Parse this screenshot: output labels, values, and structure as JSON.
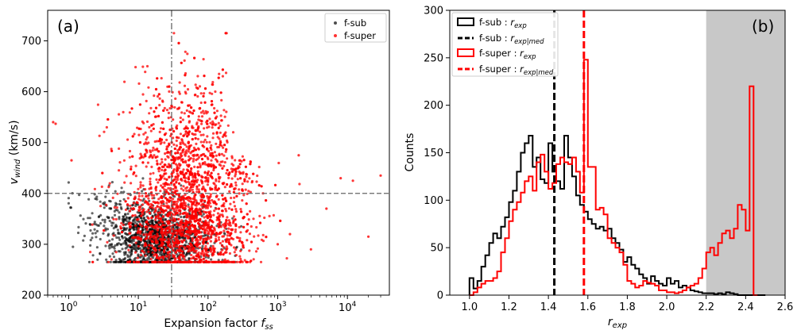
{
  "chart_data": [
    {
      "type": "scatter",
      "panel": "(a)",
      "xlabel": "Expansion factor f_ss",
      "ylabel": "v_wind (km/s)",
      "xscale": "log",
      "xlim": [
        0.5,
        40000
      ],
      "ylim": [
        200,
        760
      ],
      "xticks": [
        1,
        10,
        100,
        1000,
        10000
      ],
      "xtick_labels": [
        "10^0",
        "10^1",
        "10^2",
        "10^3",
        "10^4"
      ],
      "yticks": [
        200,
        300,
        400,
        500,
        600,
        700
      ],
      "reference_lines": {
        "vertical_x": 30,
        "horizontal_y": 400
      },
      "legend_position": "top-right",
      "series": [
        {
          "name": "f-sub",
          "color": "#000000",
          "count": 1400,
          "x_range": [
            1,
            300
          ],
          "y_range": [
            265,
            470
          ]
        },
        {
          "name": "f-super",
          "color": "#ff0000",
          "count": 2600,
          "x_range": [
            0.6,
            35000
          ],
          "y_range": [
            265,
            715
          ]
        }
      ]
    },
    {
      "type": "histogram",
      "panel": "(b)",
      "xlabel": "r_exp",
      "ylabel": "Counts",
      "xlim": [
        0.9,
        2.6
      ],
      "ylim": [
        0,
        300
      ],
      "xticks": [
        1.0,
        1.2,
        1.4,
        1.6,
        1.8,
        2.0,
        2.2,
        2.4,
        2.6
      ],
      "yticks": [
        0,
        50,
        100,
        150,
        200,
        250,
        300
      ],
      "shaded_region": [
        2.2,
        2.6
      ],
      "legend_position": "top-left",
      "bin_width": 0.02,
      "bin_start": 1.0,
      "series": [
        {
          "name": "f-sub : r_exp",
          "color": "#000000",
          "values": [
            18,
            7,
            15,
            30,
            42,
            55,
            65,
            60,
            72,
            82,
            98,
            110,
            130,
            150,
            160,
            168,
            135,
            145,
            122,
            118,
            160,
            130,
            120,
            112,
            168,
            145,
            125,
            105,
            95,
            88,
            80,
            75,
            70,
            72,
            68,
            70,
            60,
            55,
            48,
            35,
            40,
            32,
            28,
            22,
            18,
            12,
            20,
            15,
            12,
            10,
            18,
            12,
            15,
            8,
            10,
            8,
            5,
            4,
            3,
            2,
            2,
            2,
            1,
            2,
            1,
            3,
            2,
            1,
            0,
            0,
            0,
            0,
            0,
            0,
            0,
            0,
            0,
            0,
            0,
            0,
            0,
            0,
            0,
            0,
            0,
            0,
            0,
            0,
            0,
            0,
            0,
            0,
            0,
            0,
            0,
            0,
            0,
            0,
            0,
            0,
            0,
            0,
            0,
            0,
            0,
            0,
            0,
            0,
            0,
            0,
            0,
            0,
            0,
            0,
            0,
            0,
            0,
            0,
            0,
            0,
            0,
            0,
            0,
            0,
            0,
            0,
            0,
            0,
            0,
            0,
            0,
            0,
            0,
            0,
            0,
            0,
            0,
            0,
            0,
            0,
            0,
            0,
            0,
            0,
            0,
            0,
            0,
            0,
            0,
            0,
            0,
            0,
            0,
            0,
            0,
            0,
            0,
            0,
            0,
            0,
            0,
            0,
            0,
            0,
            0,
            0,
            0,
            0,
            0,
            0,
            0,
            0,
            0,
            0,
            0,
            0,
            0,
            0,
            0,
            0,
            0,
            0,
            0,
            0,
            0,
            0,
            0,
            0,
            0,
            0,
            0,
            0,
            0,
            0,
            0,
            0,
            0,
            0,
            0,
            0,
            0,
            0,
            0,
            0,
            0,
            0,
            0,
            0,
            0,
            0,
            0,
            0,
            0,
            0,
            0,
            0,
            0,
            0,
            0,
            0,
            0,
            0,
            0,
            0,
            0,
            0,
            0,
            0,
            0,
            0,
            0,
            0,
            0,
            0,
            0,
            0,
            0,
            0,
            0,
            0,
            0,
            0,
            0,
            0,
            0,
            0,
            0,
            0,
            0,
            0,
            0,
            0,
            0,
            0,
            0,
            0,
            0,
            0,
            0,
            0,
            0,
            0,
            0,
            0,
            0,
            0,
            0,
            0,
            0,
            0,
            0,
            0,
            0,
            0,
            0,
            0,
            0,
            0,
            0,
            0,
            0,
            0,
            0,
            0,
            0,
            0,
            0,
            0,
            0,
            0,
            0,
            0,
            0,
            0,
            0,
            0,
            0,
            0,
            0,
            0,
            0,
            0,
            0,
            0,
            0
          ]
        },
        {
          "name": "f-super : r_exp",
          "color": "#ff0000",
          "values": [
            0,
            3,
            8,
            12,
            15,
            15,
            18,
            25,
            45,
            60,
            78,
            90,
            98,
            108,
            120,
            125,
            110,
            140,
            148,
            130,
            112,
            118,
            138,
            145,
            140,
            138,
            145,
            130,
            108,
            248,
            135,
            135,
            90,
            92,
            85,
            60,
            55,
            50,
            45,
            32,
            15,
            12,
            8,
            10,
            15,
            13,
            12,
            10,
            5,
            5,
            3,
            3,
            2,
            3,
            5,
            8,
            10,
            12,
            18,
            28,
            45,
            50,
            42,
            55,
            65,
            68,
            60,
            70,
            95,
            90,
            68,
            220,
            0
          ]
        }
      ],
      "medians": [
        {
          "name": "f-sub : r_exp|med",
          "x": 1.43,
          "color": "#000000"
        },
        {
          "name": "f-super : r_exp|med",
          "x": 1.58,
          "color": "#ff0000"
        }
      ]
    }
  ],
  "labels": {
    "panel_a": "(a)",
    "panel_b": "(b)",
    "a_xlabel_main": "Expansion factor ",
    "a_xlabel_var": "f",
    "a_xlabel_sub": "ss",
    "a_ylabel_var": "v",
    "a_ylabel_sub": "wind",
    "a_ylabel_unit": " (km/s)",
    "b_xlabel_var": "r",
    "b_xlabel_sub": "exp",
    "b_ylabel": "Counts",
    "legend_a_sub": "f-sub",
    "legend_a_super": "f-super",
    "legend_b_1_main": "f-sub : ",
    "legend_b_2_main": "f-sub : ",
    "legend_b_3_main": "f-super : ",
    "legend_b_4_main": "f-super : ",
    "legend_var": "r",
    "legend_sub_exp": "exp",
    "legend_sub_med": "exp|med",
    "power_base": "10"
  }
}
